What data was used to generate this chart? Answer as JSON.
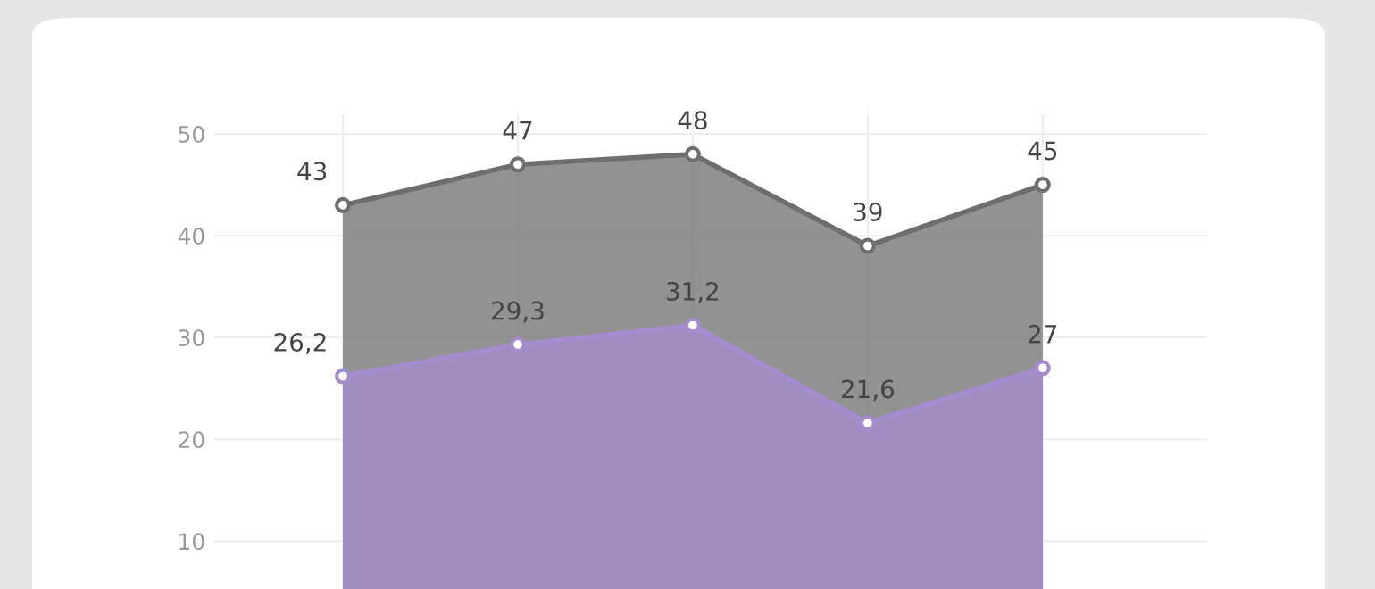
{
  "chart_data": {
    "type": "area",
    "categories": [
      null,
      null,
      null,
      null,
      null
    ],
    "series": [
      {
        "color": "#6e6e6e",
        "values": [
          43,
          47,
          48,
          39,
          45
        ],
        "value_labels": [
          "43",
          "47",
          "48",
          "39",
          "45"
        ]
      },
      {
        "color": "#a48ccf",
        "values": [
          26.2,
          29.3,
          31.2,
          21.6,
          27
        ],
        "value_labels": [
          "26,2",
          "29,3",
          "31,2",
          "21,6",
          "27"
        ]
      }
    ],
    "ylim": [
      5.3,
      52
    ],
    "yticks": [
      10,
      20,
      30,
      40,
      50
    ],
    "grid": true,
    "marker": "circle"
  }
}
